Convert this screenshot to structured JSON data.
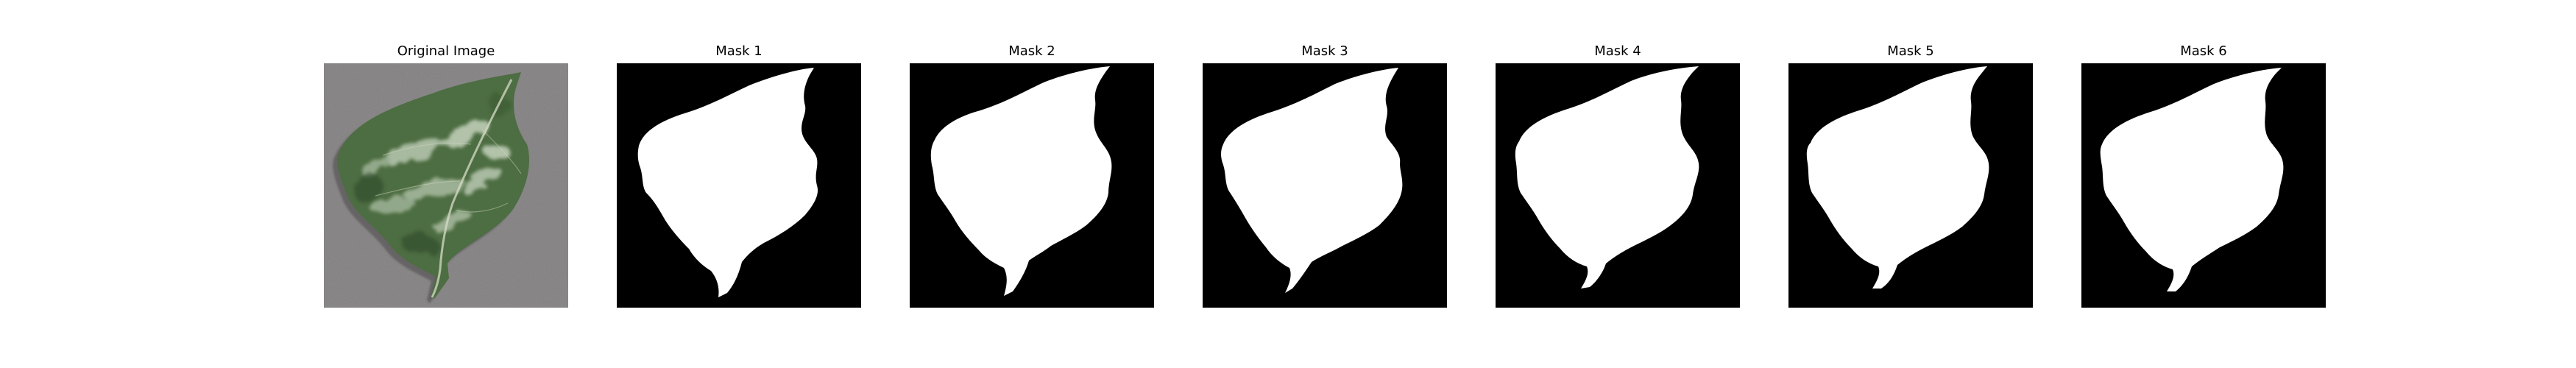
{
  "panels": [
    {
      "title": "Original Image"
    },
    {
      "title": "Mask 1"
    },
    {
      "title": "Mask 2"
    },
    {
      "title": "Mask 3"
    },
    {
      "title": "Mask 4"
    },
    {
      "title": "Mask 5"
    },
    {
      "title": "Mask 6"
    }
  ],
  "colors": {
    "mask_background": "#000000",
    "mask_foreground": "#ffffff",
    "photo_background": "#8d8b8c",
    "leaf_dark": "#3e5a34",
    "leaf_mid": "#587a4a",
    "leaf_light": "#b8c8b0"
  }
}
